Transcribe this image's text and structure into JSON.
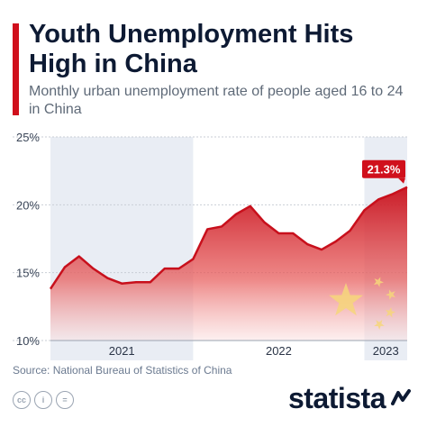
{
  "header": {
    "title": "Youth Unemployment Hits High in China",
    "subtitle": "Monthly urban unemployment rate of people aged 16 to 24 in China"
  },
  "footer": {
    "source": "Source: National Bureau of Statistics of China",
    "brand": "statista",
    "license_icons": [
      "cc-icon",
      "attribution-icon",
      "no-derivatives-icon"
    ],
    "license_glyphs": [
      "cc",
      "i",
      "="
    ]
  },
  "colors": {
    "accent": "#d0101c",
    "line": "#c8101c",
    "year_band": "#e9edf4",
    "flag_star": "#f6d67a"
  },
  "chart_data": {
    "type": "area",
    "ylim": [
      10,
      25
    ],
    "y_ticks": [
      "10%",
      "15%",
      "20%",
      "25%"
    ],
    "year_labels": [
      "2021",
      "2022",
      "2023"
    ],
    "grid": true,
    "series": [
      {
        "values": [
          13.8,
          15.4,
          16.2,
          15.3,
          14.6,
          14.2,
          14.3,
          14.3,
          15.3,
          15.3,
          16.0,
          18.2,
          18.4,
          19.3,
          19.9,
          18.7,
          17.9,
          17.9,
          17.1,
          16.7,
          17.3,
          18.1,
          19.6,
          20.4,
          20.8,
          21.3
        ]
      }
    ],
    "annotation": "21.3%"
  }
}
